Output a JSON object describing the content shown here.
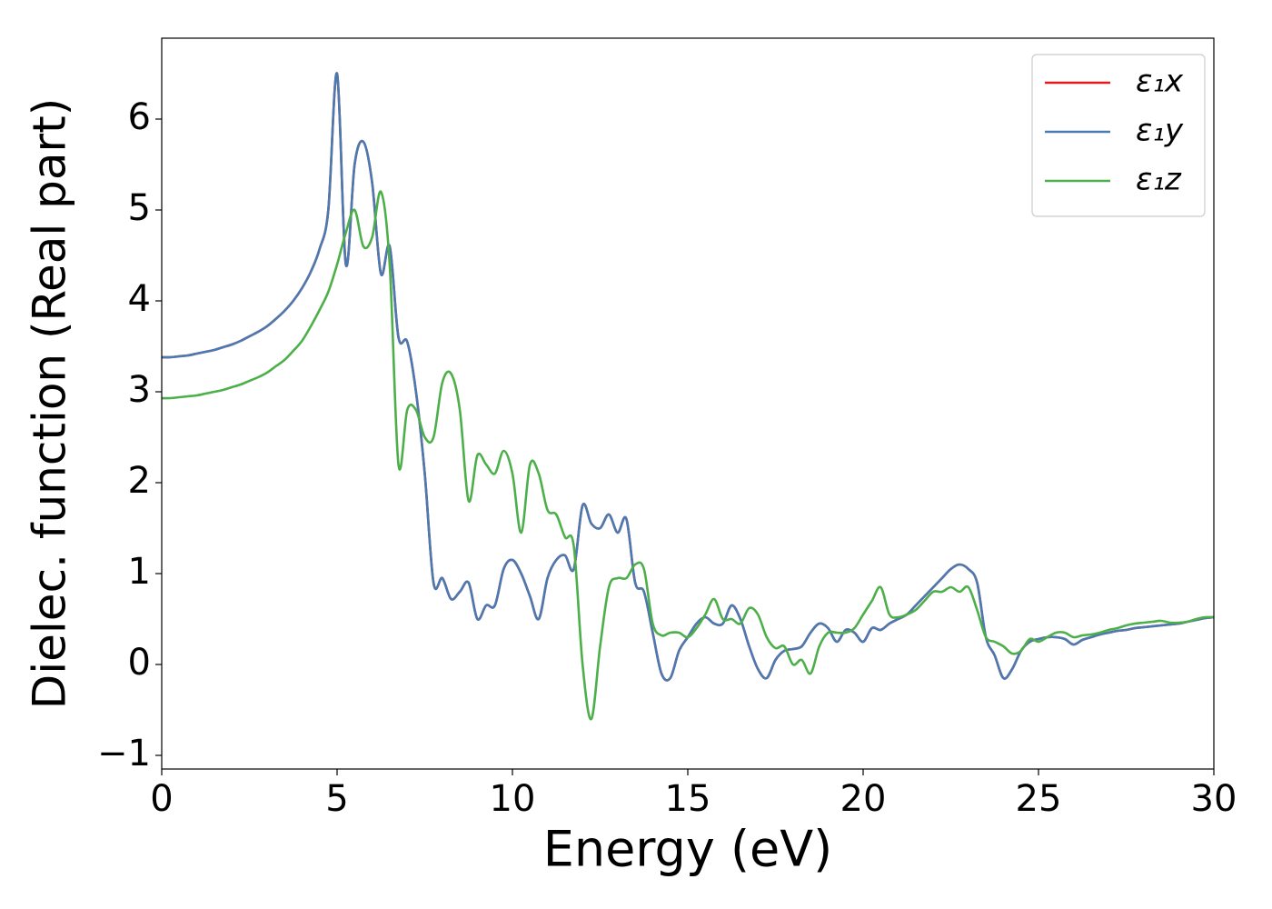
{
  "chart_data": {
    "type": "line",
    "xlabel": "Energy (eV)",
    "ylabel": "Dielec. function (Real part)",
    "x": [
      0,
      0.25,
      0.5,
      0.75,
      1,
      1.25,
      1.5,
      1.75,
      2,
      2.25,
      2.5,
      2.75,
      3,
      3.25,
      3.5,
      3.75,
      4,
      4.25,
      4.5,
      4.75,
      5,
      5.25,
      5.5,
      5.75,
      6,
      6.25,
      6.5,
      6.75,
      7,
      7.25,
      7.5,
      7.75,
      8,
      8.25,
      8.5,
      8.75,
      9,
      9.25,
      9.5,
      9.75,
      10,
      10.25,
      10.5,
      10.75,
      11,
      11.25,
      11.5,
      11.75,
      12,
      12.25,
      12.5,
      12.75,
      13,
      13.25,
      13.5,
      13.75,
      14,
      14.25,
      14.5,
      14.75,
      15,
      15.25,
      15.5,
      15.75,
      16,
      16.25,
      16.5,
      16.75,
      17,
      17.25,
      17.5,
      17.75,
      18,
      18.25,
      18.5,
      18.75,
      19,
      19.25,
      19.5,
      19.75,
      20,
      20.25,
      20.5,
      20.75,
      21,
      21.25,
      21.5,
      21.75,
      22,
      22.25,
      22.5,
      22.75,
      23,
      23.25,
      23.5,
      23.75,
      24,
      24.25,
      24.5,
      24.75,
      25,
      25.25,
      25.5,
      25.75,
      26,
      26.25,
      26.5,
      26.75,
      27,
      27.25,
      27.5,
      27.75,
      28,
      28.25,
      28.5,
      28.75,
      29,
      29.25,
      29.5,
      29.75,
      30
    ],
    "series": [
      {
        "name": "ε₁x",
        "color": "#e41a1c",
        "values": [
          3.38,
          3.38,
          3.39,
          3.4,
          3.42,
          3.44,
          3.46,
          3.49,
          3.52,
          3.56,
          3.61,
          3.66,
          3.72,
          3.8,
          3.89,
          4.0,
          4.14,
          4.32,
          4.57,
          5.0,
          6.5,
          4.4,
          5.5,
          5.75,
          5.3,
          4.3,
          4.6,
          3.6,
          3.55,
          3.0,
          2.1,
          0.9,
          0.95,
          0.72,
          0.8,
          0.9,
          0.5,
          0.65,
          0.65,
          1.05,
          1.15,
          1.0,
          0.75,
          0.5,
          0.95,
          1.15,
          1.2,
          1.05,
          1.75,
          1.55,
          1.5,
          1.65,
          1.45,
          1.6,
          0.9,
          0.8,
          0.35,
          -0.1,
          -0.15,
          0.15,
          0.3,
          0.45,
          0.52,
          0.45,
          0.45,
          0.65,
          0.5,
          0.2,
          -0.05,
          -0.15,
          0.05,
          0.15,
          0.17,
          0.2,
          0.35,
          0.45,
          0.4,
          0.25,
          0.38,
          0.35,
          0.25,
          0.4,
          0.38,
          0.45,
          0.5,
          0.55,
          0.65,
          0.75,
          0.85,
          0.95,
          1.05,
          1.1,
          1.05,
          0.9,
          0.3,
          0.1,
          -0.15,
          -0.05,
          0.15,
          0.25,
          0.28,
          0.3,
          0.3,
          0.28,
          0.22,
          0.27,
          0.3,
          0.33,
          0.35,
          0.37,
          0.38,
          0.4,
          0.41,
          0.42,
          0.43,
          0.44,
          0.45,
          0.47,
          0.49,
          0.51,
          0.52
        ]
      },
      {
        "name": "ε₁y",
        "color": "#4a7ab2",
        "values": [
          3.38,
          3.38,
          3.39,
          3.4,
          3.42,
          3.44,
          3.46,
          3.49,
          3.52,
          3.56,
          3.61,
          3.66,
          3.72,
          3.8,
          3.89,
          4.0,
          4.14,
          4.32,
          4.57,
          5.0,
          6.5,
          4.4,
          5.5,
          5.75,
          5.3,
          4.3,
          4.6,
          3.6,
          3.55,
          3.0,
          2.1,
          0.9,
          0.95,
          0.72,
          0.8,
          0.9,
          0.5,
          0.65,
          0.65,
          1.05,
          1.15,
          1.0,
          0.75,
          0.5,
          0.95,
          1.15,
          1.2,
          1.05,
          1.75,
          1.55,
          1.5,
          1.65,
          1.45,
          1.6,
          0.9,
          0.8,
          0.35,
          -0.1,
          -0.15,
          0.15,
          0.3,
          0.45,
          0.52,
          0.45,
          0.45,
          0.65,
          0.5,
          0.2,
          -0.05,
          -0.15,
          0.05,
          0.15,
          0.17,
          0.2,
          0.35,
          0.45,
          0.4,
          0.25,
          0.38,
          0.35,
          0.25,
          0.4,
          0.38,
          0.45,
          0.5,
          0.55,
          0.65,
          0.75,
          0.85,
          0.95,
          1.05,
          1.1,
          1.05,
          0.9,
          0.3,
          0.1,
          -0.15,
          -0.05,
          0.15,
          0.25,
          0.28,
          0.3,
          0.3,
          0.28,
          0.22,
          0.27,
          0.3,
          0.33,
          0.35,
          0.37,
          0.38,
          0.4,
          0.41,
          0.42,
          0.43,
          0.44,
          0.45,
          0.47,
          0.49,
          0.51,
          0.52
        ]
      },
      {
        "name": "ε₁z",
        "color": "#4daf4a",
        "values": [
          2.93,
          2.93,
          2.94,
          2.95,
          2.96,
          2.98,
          3.0,
          3.02,
          3.05,
          3.08,
          3.12,
          3.16,
          3.21,
          3.28,
          3.35,
          3.45,
          3.56,
          3.72,
          3.9,
          4.1,
          4.4,
          4.75,
          5.0,
          4.6,
          4.7,
          5.2,
          4.4,
          2.2,
          2.8,
          2.8,
          2.5,
          2.5,
          3.1,
          3.2,
          2.8,
          1.8,
          2.3,
          2.2,
          2.1,
          2.35,
          2.1,
          1.45,
          2.2,
          2.1,
          1.7,
          1.65,
          1.4,
          1.3,
          0.0,
          -0.6,
          0.2,
          0.85,
          0.95,
          0.95,
          1.1,
          1.05,
          0.45,
          0.32,
          0.35,
          0.35,
          0.3,
          0.4,
          0.55,
          0.72,
          0.5,
          0.5,
          0.45,
          0.62,
          0.55,
          0.3,
          0.18,
          0.2,
          0.0,
          0.05,
          -0.1,
          0.2,
          0.35,
          0.35,
          0.35,
          0.4,
          0.55,
          0.7,
          0.85,
          0.55,
          0.52,
          0.55,
          0.6,
          0.7,
          0.8,
          0.8,
          0.85,
          0.8,
          0.85,
          0.6,
          0.3,
          0.25,
          0.2,
          0.12,
          0.15,
          0.28,
          0.25,
          0.3,
          0.35,
          0.35,
          0.3,
          0.32,
          0.33,
          0.35,
          0.38,
          0.4,
          0.43,
          0.45,
          0.46,
          0.47,
          0.48,
          0.46,
          0.46,
          0.47,
          0.5,
          0.52,
          0.52
        ]
      }
    ],
    "xlim": [
      0,
      30
    ],
    "xticks": [
      0,
      5,
      10,
      15,
      20,
      25,
      30
    ],
    "ylim": [
      -1.15,
      6.89
    ],
    "yticks": [
      {
        "value": -1,
        "label": "−1"
      },
      0,
      1,
      2,
      3,
      4,
      5,
      6
    ],
    "legend": "upper right",
    "grid": false
  }
}
